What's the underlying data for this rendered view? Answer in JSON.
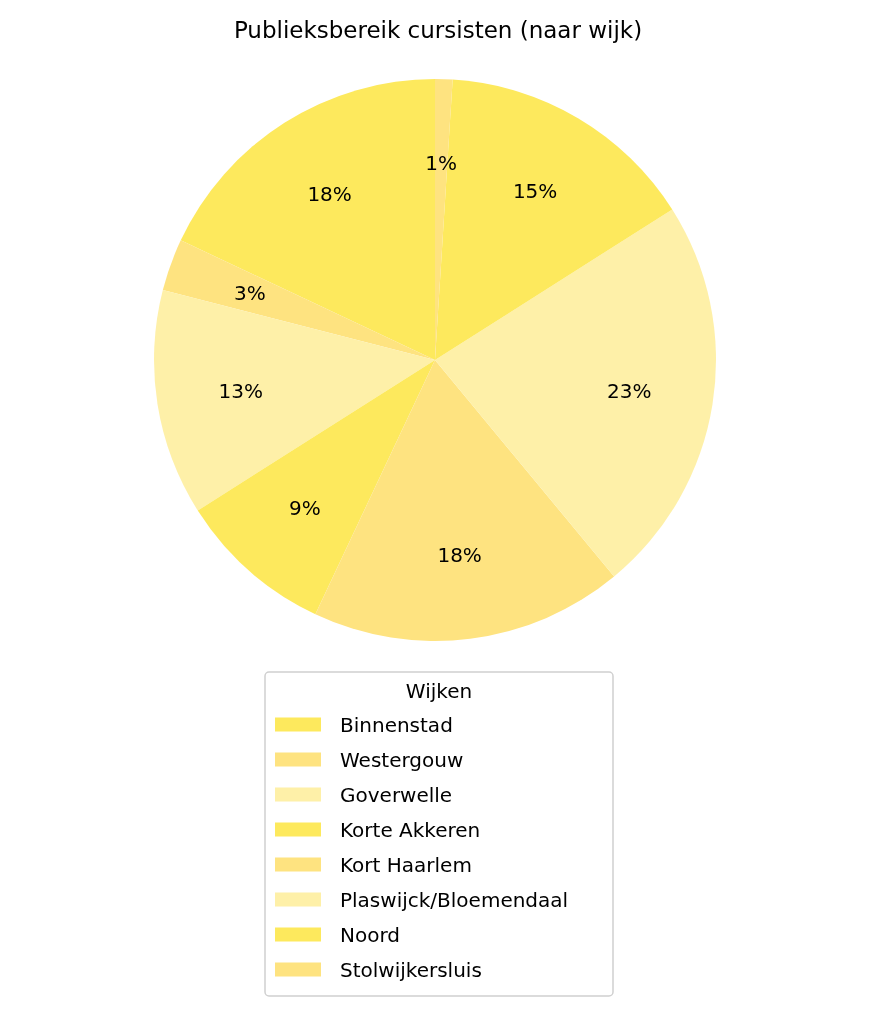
{
  "chart_data": {
    "type": "pie",
    "title": "Publieksbereik cursisten (naar wijk)",
    "categories": [
      "Binnenstad",
      "Westergouw",
      "Goverwelle",
      "Korte Akkeren",
      "Kort Haarlem",
      "Plaswijck/Bloemendaal",
      "Noord",
      "Stolwijkersluis"
    ],
    "values": [
      18,
      3,
      13,
      9,
      18,
      23,
      15,
      1
    ],
    "colors": [
      "#fde95d",
      "#fee380",
      "#fef0a8",
      "#fde95d",
      "#fee380",
      "#fef0a8",
      "#fde95d",
      "#fee380"
    ],
    "value_labels": [
      "18%",
      "3%",
      "13%",
      "9%",
      "18%",
      "23%",
      "15%",
      "1%"
    ],
    "legend": "bottom",
    "legend_title": "Wijken"
  }
}
